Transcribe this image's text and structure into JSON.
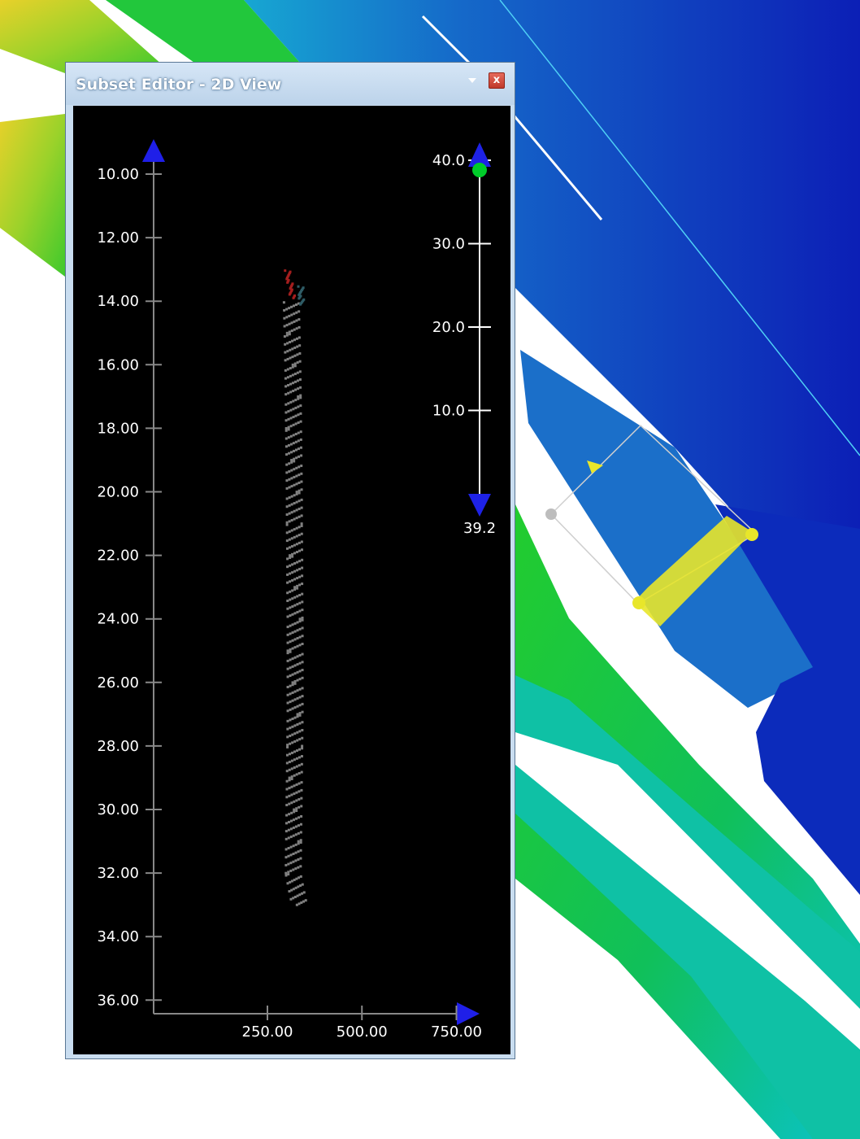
{
  "window": {
    "title": "Subset Editor - 2D View",
    "close_symbol": "x",
    "menu_icon": "chevron-down-icon",
    "close_icon": "close-icon"
  },
  "chart_data": {
    "type": "scatter",
    "yaxis": {
      "ticks": [
        "10.00",
        "12.00",
        "14.00",
        "16.00",
        "18.00",
        "20.00",
        "22.00",
        "24.00",
        "26.00",
        "28.00",
        "30.00",
        "32.00",
        "34.00",
        "36.00"
      ],
      "range": [
        9,
        36.5
      ]
    },
    "xaxis": {
      "ticks": [
        "250.00",
        "500.00",
        "750.00"
      ],
      "range": [
        0,
        800
      ]
    },
    "series": [
      {
        "color": "#808080",
        "points": [
          [
            310,
            14
          ],
          [
            312,
            15
          ],
          [
            314,
            16
          ],
          [
            315,
            17
          ],
          [
            316,
            18
          ],
          [
            317,
            19
          ],
          [
            318,
            20
          ],
          [
            318,
            21
          ],
          [
            319,
            22
          ],
          [
            319,
            23
          ],
          [
            320,
            24
          ],
          [
            320,
            25
          ],
          [
            320,
            26
          ],
          [
            320,
            27
          ],
          [
            319,
            28
          ],
          [
            318,
            29
          ],
          [
            317,
            30
          ],
          [
            316,
            31
          ],
          [
            315,
            32
          ],
          [
            332,
            33
          ]
        ]
      },
      {
        "color": "#a51e1e",
        "points": [
          [
            300,
            13
          ],
          [
            305,
            13.3
          ],
          [
            310,
            13.6
          ],
          [
            314,
            13.9
          ]
        ]
      },
      {
        "color": "#2f5c66",
        "points": [
          [
            335,
            13.5
          ],
          [
            337,
            13.8
          ],
          [
            336,
            14.1
          ]
        ]
      }
    ]
  },
  "colorscale": {
    "ticks": [
      "40.0",
      "30.0",
      "20.0",
      "10.0"
    ],
    "range": [
      0,
      40
    ],
    "max_marker_value": 40.0,
    "min_value_label": "39.2",
    "min_marker_color": "#1e22e6",
    "max_marker_color": "#1e22e6",
    "handle_color": "#00cc2a"
  },
  "colors": {
    "axis": "#888888",
    "arrow": "#1f1fe8",
    "map_deep": "#0f2fc6",
    "map_mid": "#1a86d0",
    "map_shallow": "#12c229",
    "selection": "#e8e62a"
  }
}
